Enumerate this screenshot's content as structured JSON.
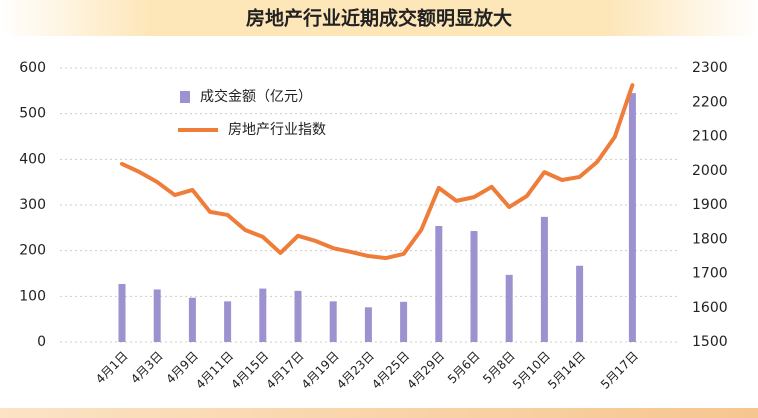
{
  "chart_data": {
    "type": "bar-line",
    "title": "房地产行业近期成交额明显放大",
    "categories": [
      "4月1日",
      null,
      "4月3日",
      null,
      "4月9日",
      null,
      "4月11日",
      null,
      "4月15日",
      null,
      "4月17日",
      null,
      "4月19日",
      null,
      "4月23日",
      null,
      "4月25日",
      null,
      "4月29日",
      null,
      "5月6日",
      null,
      "5月8日",
      null,
      "5月10日",
      null,
      "5月14日",
      null,
      null,
      "5月17日"
    ],
    "series": [
      {
        "name": "成交金额（亿元）",
        "type": "bar",
        "color": "#9d92cf",
        "axis": "y",
        "values": [
          127,
          null,
          115,
          null,
          97,
          null,
          89,
          null,
          117,
          null,
          112,
          null,
          89,
          null,
          76,
          null,
          88,
          null,
          254,
          null,
          243,
          null,
          147,
          null,
          274,
          null,
          167,
          null,
          null,
          545
        ]
      },
      {
        "name": "房地产行业指数",
        "type": "line",
        "color": "#ee7d3a",
        "axis": "y2",
        "values": [
          2020,
          1996,
          1967,
          1929,
          1944,
          1880,
          1871,
          1827,
          1807,
          1760,
          1810,
          1795,
          1774,
          1763,
          1751,
          1745,
          1757,
          1827,
          1950,
          1912,
          1923,
          1953,
          1894,
          1926,
          1996,
          1973,
          1982,
          2026,
          2099,
          2250
        ]
      }
    ],
    "ylim": [
      0,
      600
    ],
    "yticks": [
      0,
      100,
      200,
      300,
      400,
      500,
      600
    ],
    "y2lim": [
      1500,
      2300
    ],
    "y2ticks": [
      1500,
      1600,
      1700,
      1800,
      1900,
      2000,
      2100,
      2200,
      2300
    ],
    "grid": true
  }
}
